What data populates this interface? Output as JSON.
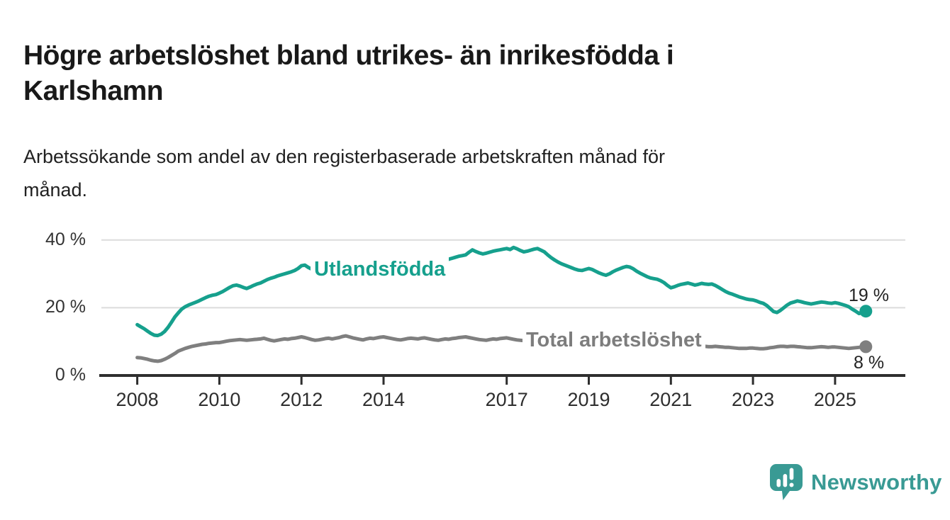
{
  "title": {
    "line1": "Högre arbetslöshet bland utrikes- än inrikesfödda i",
    "line2": "Karlshamn"
  },
  "subtitle": {
    "line1": "Arbetssökande som andel av den registerbaserade arbetskraften månad för",
    "line2": "månad."
  },
  "branding": {
    "logo_text": "Newsworthy",
    "logo_color": "#399a94",
    "logo_icon": "newsworthy-speech-bubble-bar-chart-icon"
  },
  "chart_data": {
    "type": "line",
    "unit": "%",
    "frequency": "monthly",
    "time_start": "2008-01",
    "time_end": "2025-10",
    "grid": "horizontal-only",
    "ylim": [
      0,
      42
    ],
    "y_axis": {
      "ticks": [
        {
          "value": 0,
          "label": "0 %"
        },
        {
          "value": 20,
          "label": "20 %"
        },
        {
          "value": 40,
          "label": "40 %"
        }
      ]
    },
    "x_axis": {
      "ticks": [
        {
          "value": 2008,
          "label": "2008"
        },
        {
          "value": 2010,
          "label": "2010"
        },
        {
          "value": 2012,
          "label": "2012"
        },
        {
          "value": 2014,
          "label": "2014"
        },
        {
          "value": 2017,
          "label": "2017"
        },
        {
          "value": 2019,
          "label": "2019"
        },
        {
          "value": 2021,
          "label": "2021"
        },
        {
          "value": 2023,
          "label": "2023"
        },
        {
          "value": 2025,
          "label": "2025"
        }
      ]
    },
    "series": [
      {
        "id": "utlandsfodda",
        "name": "Utlandsfödda",
        "color": "#16a08d",
        "end_value": 19,
        "end_label": "19 %",
        "values": [
          15.0,
          14.4,
          13.8,
          13.1,
          12.4,
          11.9,
          11.8,
          12.2,
          13.0,
          14.2,
          15.7,
          17.3,
          18.5,
          19.6,
          20.3,
          20.8,
          21.2,
          21.6,
          22.0,
          22.5,
          23.0,
          23.4,
          23.7,
          23.9,
          24.3,
          24.8,
          25.4,
          26.0,
          26.5,
          26.7,
          26.4,
          26.0,
          25.7,
          26.1,
          26.6,
          27.0,
          27.3,
          27.8,
          28.3,
          28.7,
          29.0,
          29.4,
          29.7,
          30.0,
          30.3,
          30.6,
          31.0,
          31.6,
          32.4,
          32.6,
          31.9,
          31.4,
          31.1,
          30.9,
          30.8,
          31.0,
          31.2,
          31.1,
          31.3,
          31.4,
          31.5,
          31.8,
          31.6,
          31.2,
          30.6,
          30.0,
          29.5,
          30.1,
          30.7,
          30.5,
          30.8,
          31.0,
          31.2,
          31.5,
          31.3,
          31.6,
          31.8,
          32.0,
          32.2,
          32.5,
          32.8,
          33.0,
          33.2,
          32.9,
          33.0,
          33.3,
          33.6,
          33.9,
          34.1,
          33.8,
          34.0,
          34.3,
          34.6,
          34.9,
          35.2,
          35.4,
          35.6,
          36.4,
          37.1,
          36.6,
          36.2,
          35.9,
          36.1,
          36.4,
          36.7,
          36.9,
          37.1,
          37.3,
          37.5,
          37.2,
          37.8,
          37.4,
          36.9,
          36.5,
          36.7,
          37.0,
          37.3,
          37.5,
          37.0,
          36.5,
          35.6,
          34.8,
          34.1,
          33.5,
          33.0,
          32.6,
          32.2,
          31.8,
          31.4,
          31.1,
          31.0,
          31.3,
          31.6,
          31.3,
          30.8,
          30.3,
          29.9,
          29.6,
          30.0,
          30.6,
          31.1,
          31.5,
          31.9,
          32.2,
          32.0,
          31.5,
          30.8,
          30.2,
          29.7,
          29.2,
          28.8,
          28.6,
          28.4,
          28.0,
          27.4,
          26.6,
          25.9,
          26.2,
          26.6,
          26.9,
          27.1,
          27.3,
          27.0,
          26.7,
          26.9,
          27.2,
          27.0,
          26.9,
          27.0,
          26.6,
          26.0,
          25.4,
          24.8,
          24.3,
          24.0,
          23.6,
          23.2,
          22.9,
          22.6,
          22.4,
          22.3,
          22.0,
          21.6,
          21.3,
          20.7,
          19.8,
          18.9,
          18.6,
          19.2,
          20.0,
          20.8,
          21.4,
          21.7,
          22.0,
          21.8,
          21.5,
          21.3,
          21.1,
          21.3,
          21.5,
          21.7,
          21.6,
          21.4,
          21.3,
          21.5,
          21.3,
          21.0,
          20.7,
          20.3,
          19.6,
          19.0,
          18.3,
          18.5,
          19.0
        ]
      },
      {
        "id": "total-arbetsloshet",
        "name": "Total arbetslöshet",
        "color": "#7f7f7f",
        "end_value": 8,
        "end_label": "8 %",
        "values": [
          5.3,
          5.2,
          5.0,
          4.8,
          4.5,
          4.3,
          4.2,
          4.4,
          4.8,
          5.3,
          5.9,
          6.5,
          7.2,
          7.6,
          8.0,
          8.3,
          8.6,
          8.8,
          9.0,
          9.2,
          9.3,
          9.5,
          9.6,
          9.7,
          9.7,
          9.9,
          10.1,
          10.3,
          10.4,
          10.5,
          10.6,
          10.5,
          10.4,
          10.5,
          10.6,
          10.7,
          10.8,
          11.0,
          10.7,
          10.4,
          10.2,
          10.4,
          10.6,
          10.8,
          10.7,
          10.9,
          11.0,
          11.2,
          11.4,
          11.2,
          10.9,
          10.6,
          10.4,
          10.5,
          10.7,
          10.9,
          11.0,
          10.8,
          11.0,
          11.2,
          11.5,
          11.7,
          11.4,
          11.1,
          10.9,
          10.7,
          10.5,
          10.8,
          11.0,
          10.9,
          11.1,
          11.3,
          11.4,
          11.2,
          11.0,
          10.8,
          10.6,
          10.5,
          10.7,
          10.9,
          11.0,
          10.9,
          10.8,
          11.0,
          11.1,
          10.9,
          10.7,
          10.5,
          10.4,
          10.6,
          10.8,
          10.7,
          10.9,
          11.0,
          11.2,
          11.3,
          11.4,
          11.2,
          11.0,
          10.8,
          10.6,
          10.5,
          10.4,
          10.6,
          10.8,
          10.7,
          10.9,
          11.0,
          11.1,
          10.9,
          10.7,
          10.5,
          10.4,
          10.3,
          10.4,
          10.5,
          10.4,
          10.3,
          10.2,
          10.1,
          10.0,
          9.9,
          9.8,
          9.7,
          9.6,
          9.5,
          9.6,
          9.7,
          9.6,
          9.5,
          9.4,
          9.5,
          9.6,
          9.5,
          9.4,
          9.3,
          9.2,
          9.3,
          9.4,
          9.5,
          9.4,
          9.3,
          9.4,
          9.6,
          9.8,
          10.1,
          10.5,
          10.8,
          11.0,
          10.9,
          10.8,
          10.6,
          10.4,
          10.2,
          10.0,
          9.9,
          9.9,
          10.0,
          9.8,
          9.6,
          9.4,
          9.2,
          9.0,
          8.9,
          8.8,
          8.7,
          8.6,
          8.5,
          8.5,
          8.6,
          8.5,
          8.4,
          8.3,
          8.3,
          8.2,
          8.1,
          8.0,
          8.0,
          8.0,
          8.1,
          8.1,
          8.0,
          7.9,
          7.9,
          8.0,
          8.2,
          8.3,
          8.5,
          8.6,
          8.6,
          8.5,
          8.6,
          8.6,
          8.5,
          8.4,
          8.3,
          8.2,
          8.2,
          8.3,
          8.4,
          8.5,
          8.4,
          8.3,
          8.4,
          8.4,
          8.3,
          8.2,
          8.1,
          8.0,
          8.1,
          8.2,
          8.3,
          8.4,
          8.5
        ]
      }
    ]
  }
}
